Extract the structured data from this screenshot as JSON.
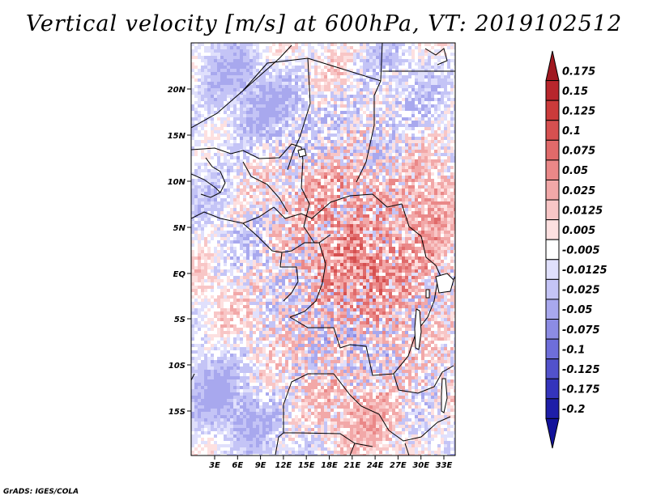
{
  "title": "Vertical velocity [m/s] at 600hPa, VT: 2019102512",
  "footer": "GrADS: IGES/COLA",
  "map": {
    "variable": "Vertical velocity",
    "units": "m/s",
    "level": "600hPa",
    "valid_time": "2019102512",
    "lat_labels": [
      "20N",
      "15N",
      "10N",
      "5N",
      "EQ",
      "5S",
      "10S",
      "15S"
    ],
    "lon_labels": [
      "3E",
      "6E",
      "9E",
      "12E",
      "15E",
      "18E",
      "21E",
      "24E",
      "27E",
      "30E",
      "33E"
    ]
  },
  "colorbar": {
    "levels": [
      "0.175",
      "0.15",
      "0.125",
      "0.1",
      "0.075",
      "0.05",
      "0.025",
      "0.0125",
      "0.005",
      "-0.005",
      "-0.0125",
      "-0.025",
      "-0.05",
      "-0.075",
      "-0.1",
      "-0.125",
      "-0.175",
      "-0.2"
    ],
    "colors": [
      "#a01820",
      "#b8262c",
      "#cb3b3b",
      "#d65050",
      "#e06a6a",
      "#ea8888",
      "#f2a8a8",
      "#f8c6c6",
      "#fde0e0",
      "#ffffff",
      "#e0e0fc",
      "#c4c4f6",
      "#a8a8ee",
      "#8c8ce4",
      "#6e6eda",
      "#5252cc",
      "#3434bc",
      "#1e1ea8",
      "#12129a"
    ]
  }
}
